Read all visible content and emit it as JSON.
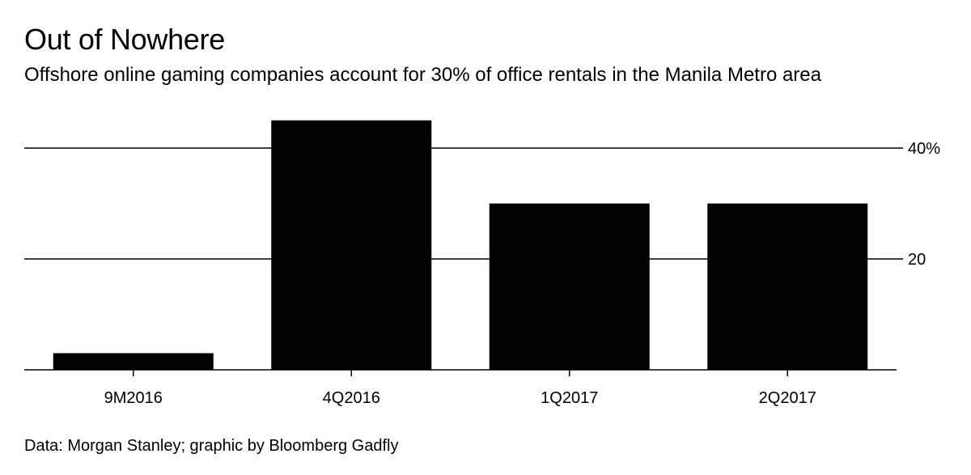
{
  "chart_data": {
    "type": "bar",
    "title": "Out of Nowhere",
    "subtitle": "Offshore online gaming companies account for 30% of office rentals in the Manila Metro area",
    "source": "Data: Morgan Stanley; graphic by Bloomberg Gadfly",
    "categories": [
      "9M2016",
      "4Q2016",
      "1Q2017",
      "2Q2017"
    ],
    "values": [
      3,
      45,
      30,
      30
    ],
    "unit": "%",
    "ylim": [
      0,
      45
    ],
    "yticks": [
      {
        "value": 20,
        "label": "20"
      },
      {
        "value": 40,
        "label": "40%"
      }
    ],
    "xlabel": "",
    "ylabel": "",
    "grid": true,
    "y_axis_side": "right",
    "bar_color": "#000000",
    "grid_color": "#000000"
  }
}
